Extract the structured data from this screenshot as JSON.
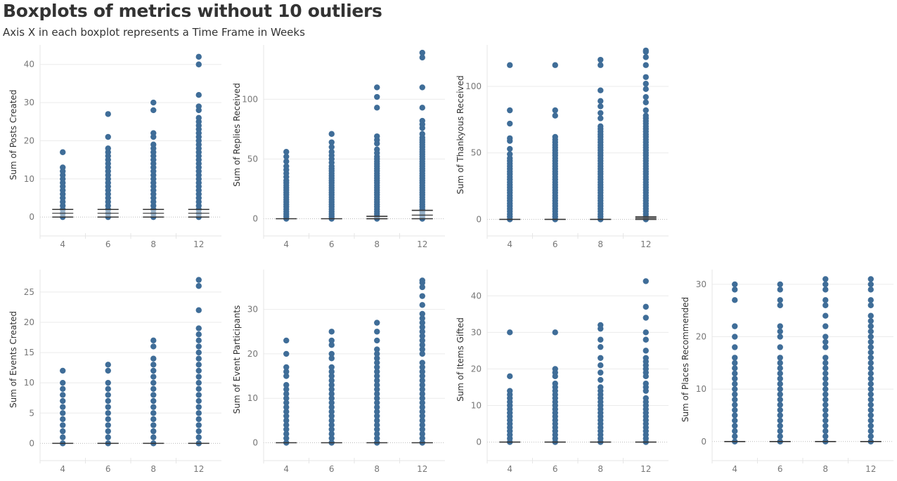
{
  "header": {
    "title": "Boxplots of metrics without 10 outliers",
    "subtitle": "Axis X in each boxplot represents a Time Frame in Weeks"
  },
  "colors": {
    "point": "#3f6d98",
    "box_line": "#333333",
    "grid": "#ebebeb",
    "zero_line": "#bbbbbb"
  },
  "chart_data": [
    {
      "type": "scatter",
      "ylabel": "Sum of Posts Created",
      "categories": [
        "4",
        "6",
        "8",
        "12"
      ],
      "ylim": [
        -2,
        44
      ],
      "yticks": [
        0,
        10,
        20,
        30,
        40
      ],
      "series": [
        {
          "x": "4",
          "values": [
            0,
            1,
            2,
            3,
            4,
            5,
            6,
            7,
            8,
            9,
            10,
            11,
            12,
            13,
            17
          ],
          "box": [
            0,
            1,
            2
          ]
        },
        {
          "x": "6",
          "values": [
            0,
            1,
            2,
            3,
            4,
            5,
            6,
            7,
            8,
            9,
            10,
            11,
            12,
            13,
            14,
            15,
            16,
            17,
            18,
            21,
            27
          ],
          "box": [
            0,
            1,
            2
          ]
        },
        {
          "x": "8",
          "values": [
            0,
            1,
            2,
            3,
            4,
            5,
            6,
            7,
            8,
            9,
            10,
            11,
            12,
            13,
            14,
            15,
            16,
            17,
            18,
            19,
            21,
            22,
            28,
            30
          ],
          "box": [
            0,
            1,
            2
          ]
        },
        {
          "x": "12",
          "values": [
            0,
            1,
            2,
            3,
            4,
            5,
            6,
            7,
            8,
            9,
            10,
            11,
            12,
            13,
            14,
            15,
            16,
            17,
            18,
            19,
            20,
            21,
            22,
            23,
            24,
            25,
            26,
            28,
            29,
            32,
            40,
            42
          ],
          "box": [
            0,
            1,
            2
          ]
        }
      ]
    },
    {
      "type": "scatter",
      "ylabel": "Sum of Replies Received",
      "categories": [
        "4",
        "6",
        "8",
        "12"
      ],
      "ylim": [
        -5,
        142
      ],
      "yticks": [
        0,
        50,
        100
      ],
      "series": [
        {
          "x": "4",
          "values": [
            0,
            2,
            4,
            6,
            8,
            10,
            12,
            14,
            16,
            18,
            20,
            22,
            24,
            26,
            28,
            30,
            32,
            35,
            38,
            41,
            44,
            48,
            52,
            56
          ],
          "box": [
            0,
            0,
            0
          ]
        },
        {
          "x": "6",
          "values": [
            0,
            2,
            4,
            6,
            8,
            10,
            12,
            14,
            16,
            18,
            20,
            22,
            24,
            26,
            28,
            30,
            32,
            34,
            36,
            38,
            40,
            42,
            44,
            47,
            50,
            53,
            56,
            60,
            64,
            71
          ],
          "box": [
            0,
            0,
            0
          ]
        },
        {
          "x": "8",
          "values": [
            0,
            2,
            4,
            6,
            8,
            10,
            12,
            14,
            16,
            18,
            20,
            22,
            24,
            26,
            28,
            30,
            32,
            34,
            36,
            38,
            40,
            42,
            44,
            46,
            48,
            50,
            52,
            55,
            58,
            63,
            66,
            69,
            93,
            102,
            110
          ],
          "box": [
            0,
            0,
            2
          ]
        },
        {
          "x": "12",
          "values": [
            0,
            2,
            4,
            6,
            8,
            10,
            12,
            14,
            16,
            18,
            20,
            22,
            24,
            26,
            28,
            30,
            32,
            34,
            36,
            38,
            40,
            42,
            44,
            46,
            48,
            50,
            52,
            54,
            56,
            58,
            60,
            62,
            64,
            66,
            68,
            71,
            76,
            79,
            82,
            93,
            110,
            135,
            139
          ],
          "box": [
            0,
            3,
            7
          ]
        }
      ]
    },
    {
      "type": "scatter",
      "ylabel": "Sum of Thankyous Received",
      "categories": [
        "4",
        "6",
        "8",
        "12"
      ],
      "ylim": [
        -4,
        128
      ],
      "yticks": [
        0,
        50,
        100
      ],
      "series": [
        {
          "x": "4",
          "values": [
            0,
            2,
            4,
            6,
            8,
            10,
            12,
            14,
            16,
            18,
            20,
            22,
            24,
            26,
            28,
            30,
            32,
            34,
            36,
            38,
            40,
            42,
            44,
            46,
            49,
            53,
            59,
            61,
            72,
            82,
            116
          ],
          "box": [
            0,
            0,
            0
          ]
        },
        {
          "x": "6",
          "values": [
            0,
            2,
            4,
            6,
            8,
            10,
            12,
            14,
            16,
            18,
            20,
            22,
            24,
            26,
            28,
            30,
            32,
            34,
            36,
            38,
            40,
            42,
            44,
            46,
            48,
            50,
            52,
            54,
            56,
            58,
            60,
            62,
            78,
            82,
            116
          ],
          "box": [
            0,
            0,
            0
          ]
        },
        {
          "x": "8",
          "values": [
            0,
            2,
            4,
            6,
            8,
            10,
            12,
            14,
            16,
            18,
            20,
            22,
            24,
            26,
            28,
            30,
            32,
            34,
            36,
            38,
            40,
            42,
            44,
            46,
            48,
            50,
            52,
            54,
            56,
            58,
            60,
            62,
            64,
            66,
            68,
            70,
            76,
            80,
            85,
            89,
            97,
            116,
            120
          ],
          "box": [
            0,
            0,
            0
          ]
        },
        {
          "x": "12",
          "values": [
            0,
            2,
            4,
            6,
            8,
            10,
            12,
            14,
            16,
            18,
            20,
            22,
            24,
            26,
            28,
            30,
            32,
            34,
            36,
            38,
            40,
            42,
            44,
            46,
            48,
            50,
            52,
            54,
            56,
            58,
            60,
            62,
            64,
            66,
            68,
            70,
            72,
            74,
            76,
            78,
            82,
            88,
            92,
            98,
            102,
            107,
            116,
            122,
            126,
            127
          ],
          "box": [
            0,
            1,
            2
          ]
        }
      ]
    },
    {
      "type": "scatter",
      "ylabel": "Sum of Events Created",
      "categories": [
        "4",
        "6",
        "8",
        "12"
      ],
      "ylim": [
        -1,
        28
      ],
      "yticks": [
        0,
        5,
        10,
        15,
        20,
        25
      ],
      "series": [
        {
          "x": "4",
          "values": [
            0,
            1,
            2,
            3,
            4,
            5,
            6,
            7,
            8,
            9,
            10,
            12
          ],
          "box": [
            0,
            0,
            0
          ]
        },
        {
          "x": "6",
          "values": [
            0,
            1,
            2,
            3,
            4,
            5,
            6,
            7,
            8,
            9,
            10,
            12,
            13
          ],
          "box": [
            0,
            0,
            0
          ]
        },
        {
          "x": "8",
          "values": [
            0,
            1,
            2,
            3,
            4,
            5,
            6,
            7,
            8,
            9,
            10,
            11,
            12,
            13,
            14,
            16,
            17
          ],
          "box": [
            0,
            0,
            0
          ]
        },
        {
          "x": "12",
          "values": [
            0,
            1,
            2,
            3,
            4,
            5,
            6,
            7,
            8,
            9,
            10,
            11,
            12,
            13,
            14,
            15,
            16,
            17,
            18,
            19,
            22,
            26,
            27
          ],
          "box": [
            0,
            0,
            0
          ]
        }
      ]
    },
    {
      "type": "scatter",
      "ylabel": "Sum of Event Participants",
      "categories": [
        "4",
        "6",
        "8",
        "12"
      ],
      "ylim": [
        -1.5,
        38
      ],
      "yticks": [
        0,
        10,
        20,
        30
      ],
      "series": [
        {
          "x": "4",
          "values": [
            0,
            1,
            2,
            3,
            4,
            5,
            6,
            7,
            8,
            9,
            10,
            11,
            12,
            13,
            15,
            16,
            17,
            20,
            23
          ],
          "box": [
            0,
            0,
            0
          ]
        },
        {
          "x": "6",
          "values": [
            0,
            1,
            2,
            3,
            4,
            5,
            6,
            7,
            8,
            9,
            10,
            11,
            12,
            13,
            14,
            15,
            16,
            17,
            19,
            20,
            22,
            23,
            25
          ],
          "box": [
            0,
            0,
            0
          ]
        },
        {
          "x": "8",
          "values": [
            0,
            1,
            2,
            3,
            4,
            5,
            6,
            7,
            8,
            9,
            10,
            11,
            12,
            13,
            14,
            15,
            16,
            17,
            18,
            19,
            20,
            21,
            23,
            25,
            27
          ],
          "box": [
            0,
            0,
            0
          ]
        },
        {
          "x": "12",
          "values": [
            0,
            1,
            2,
            3,
            4,
            5,
            6,
            7,
            8,
            9,
            10,
            11,
            12,
            13,
            14,
            15,
            16,
            17,
            18,
            20,
            21,
            22,
            23,
            24,
            25,
            26,
            27,
            28,
            29,
            31,
            33,
            35,
            36,
            36.5
          ],
          "box": [
            0,
            0,
            0
          ]
        }
      ]
    },
    {
      "type": "scatter",
      "ylabel": "Sum of Items Gifted",
      "categories": [
        "4",
        "6",
        "8",
        "12"
      ],
      "ylim": [
        -2,
        46
      ],
      "yticks": [
        0,
        10,
        20,
        30,
        40
      ],
      "series": [
        {
          "x": "4",
          "values": [
            0,
            1,
            2,
            3,
            4,
            5,
            6,
            7,
            8,
            9,
            10,
            11,
            12,
            13,
            14,
            18,
            30
          ],
          "box": [
            0,
            0,
            0
          ]
        },
        {
          "x": "6",
          "values": [
            0,
            1,
            2,
            3,
            4,
            5,
            6,
            7,
            8,
            9,
            10,
            11,
            12,
            13,
            14,
            15,
            16,
            18,
            19,
            20,
            30
          ],
          "box": [
            0,
            0,
            0
          ]
        },
        {
          "x": "8",
          "values": [
            0,
            1,
            2,
            3,
            4,
            5,
            6,
            7,
            8,
            9,
            10,
            11,
            12,
            13,
            14,
            15,
            17,
            19,
            21,
            23,
            26,
            28,
            31,
            32
          ],
          "box": [
            0,
            0,
            0
          ]
        },
        {
          "x": "12",
          "values": [
            0,
            1,
            2,
            3,
            4,
            5,
            6,
            7,
            8,
            9,
            10,
            11,
            12,
            14,
            15,
            16,
            18,
            19,
            20,
            21,
            22,
            23,
            25,
            28,
            30,
            34,
            37,
            44
          ],
          "box": [
            0,
            0,
            0
          ]
        }
      ]
    },
    {
      "type": "scatter",
      "ylabel": "Sum of Places Recommended",
      "categories": [
        "4",
        "6",
        "8",
        "12"
      ],
      "ylim": [
        -1.5,
        32
      ],
      "yticks": [
        0,
        10,
        20,
        30
      ],
      "series": [
        {
          "x": "4",
          "values": [
            0,
            1,
            2,
            3,
            4,
            5,
            6,
            7,
            8,
            9,
            10,
            11,
            12,
            13,
            14,
            15,
            16,
            18,
            20,
            22,
            27,
            29,
            30
          ],
          "box": [
            0,
            0,
            0
          ]
        },
        {
          "x": "6",
          "values": [
            0,
            1,
            2,
            3,
            4,
            5,
            6,
            7,
            8,
            9,
            10,
            11,
            12,
            13,
            14,
            15,
            16,
            18,
            20,
            21,
            22,
            26,
            27,
            29,
            30
          ],
          "box": [
            0,
            0,
            0
          ]
        },
        {
          "x": "8",
          "values": [
            0,
            1,
            2,
            3,
            4,
            5,
            6,
            7,
            8,
            9,
            10,
            11,
            12,
            13,
            14,
            15,
            16,
            18,
            19,
            20,
            22,
            24,
            26,
            27,
            29,
            30,
            31
          ],
          "box": [
            0,
            0,
            0
          ]
        },
        {
          "x": "12",
          "values": [
            0,
            1,
            2,
            3,
            4,
            5,
            6,
            7,
            8,
            9,
            10,
            11,
            12,
            13,
            14,
            15,
            16,
            17,
            18,
            19,
            20,
            21,
            22,
            23,
            24,
            26,
            27,
            29,
            30,
            31
          ],
          "box": [
            0,
            0,
            0
          ]
        }
      ]
    }
  ]
}
